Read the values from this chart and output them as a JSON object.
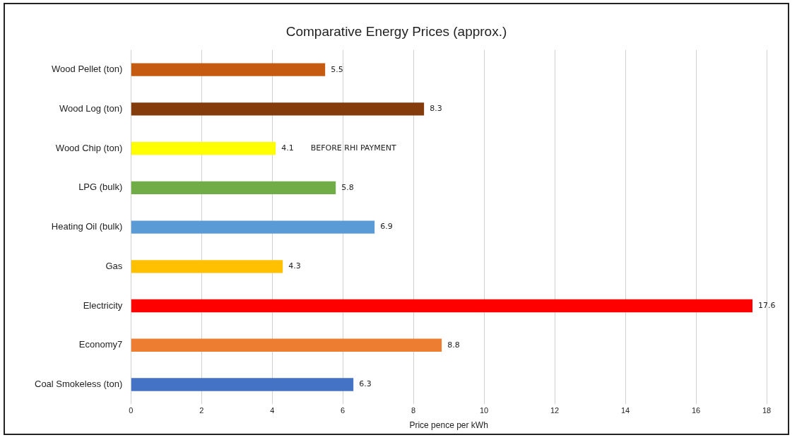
{
  "chart_data": {
    "type": "bar",
    "orientation": "horizontal",
    "title": "Comparative Energy Prices (approx.)",
    "xlabel": "Price pence per kWh",
    "categories": [
      "Wood Pellet (ton)",
      "Wood Log (ton)",
      "Wood Chip (ton)",
      "LPG (bulk)",
      "Heating Oil (bulk)",
      "Gas",
      "Electricity",
      "Economy7",
      "Coal Smokeless (ton)"
    ],
    "values": [
      5.5,
      8.3,
      4.1,
      5.8,
      6.9,
      4.3,
      17.6,
      8.8,
      6.3
    ],
    "colors": [
      "#c55a11",
      "#843c0c",
      "#ffff00",
      "#70ad47",
      "#5b9bd5",
      "#ffc000",
      "#ff0000",
      "#ed7d31",
      "#4472c4"
    ],
    "xlim": [
      0,
      18
    ],
    "xticks": [
      0,
      2,
      4,
      6,
      8,
      10,
      12,
      14,
      16,
      18
    ],
    "grid": "x",
    "data_labels": true,
    "legend": false,
    "annotations": [
      "BEFORE RHI PAYMENT"
    ]
  }
}
